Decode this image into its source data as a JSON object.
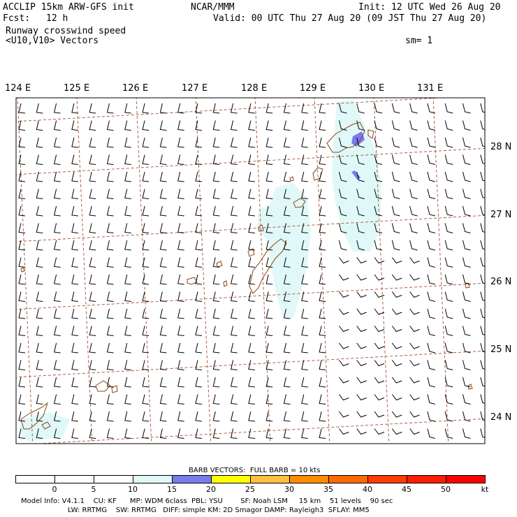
{
  "header": {
    "model": "ACCLIP 15km ARW-GFS init",
    "fcst_label": "Fcst:",
    "fcst_value": "12 h",
    "org": "NCAR/MMM",
    "init": "Init: 12 UTC Wed 26 Aug 20",
    "valid": "Valid: 00 UTC Thu 27 Aug 20 (09 JST Thu 27 Aug 20)",
    "field": "Runway crosswind speed",
    "vectors": "<U10,V10> Vectors",
    "smooth": "sm= 1"
  },
  "map": {
    "lon_labels": [
      "124 E",
      "125 E",
      "126 E",
      "127 E",
      "128 E",
      "129 E",
      "130 E",
      "131 E"
    ],
    "lat_labels": [
      "28 N",
      "27 N",
      "26 N",
      "25 N",
      "24 N"
    ],
    "colors": {
      "coast": "#8b4513",
      "grid": "#a0522d",
      "shade_10_15": "#e0f8f8",
      "shade_15_20": "#7b7bf0"
    }
  },
  "colorbar": {
    "title": "BARB VECTORS:  FULL BARB = 10 kts",
    "ticks": [
      "0",
      "5",
      "10",
      "15",
      "20",
      "25",
      "30",
      "35",
      "40",
      "45",
      "50"
    ],
    "unit": "kt",
    "colors": [
      "#ffffff",
      "#ffffff",
      "#ffffff",
      "#e0f8f8",
      "#7b7bf0",
      "#ffff00",
      "#ffbf3f",
      "#ff8c00",
      "#ff6a00",
      "#ff3c00",
      "#ff1e00",
      "#ff0000"
    ]
  },
  "footer": {
    "line1": "Model Info: V4.1.1    CU: KF      MP: WDM 6class  PBL: YSU        SF: Noah LSM     15 km    51 levels    90 sec",
    "line2": "LW: RRTMG    SW: RRTMG   DIFF: simple KM: 2D Smagor DAMP: Rayleigh3  SFLAY: MM5"
  }
}
